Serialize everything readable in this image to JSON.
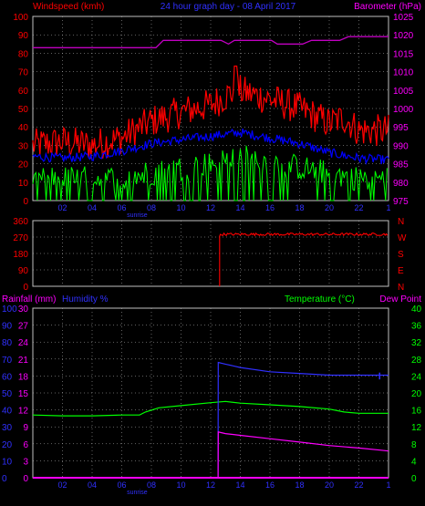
{
  "header": {
    "left_label": "Windspeed (kmh)",
    "title": "24 hour graph day - 08 April 2017",
    "right_label": "Barometer (hPa)"
  },
  "colors": {
    "background": "#000000",
    "grid": "#c0c0c0",
    "red": "#ff0000",
    "magenta": "#c000c0",
    "blue": "#0000ff",
    "green": "#00ff00",
    "pink": "#ff00ff",
    "navy": "#3030ff"
  },
  "x_axis": {
    "tick_labels": [
      "02",
      "04",
      "06",
      "08",
      "10",
      "12",
      "14",
      "16",
      "18",
      "20",
      "22",
      "1"
    ],
    "sunrise_label": "sunrise"
  },
  "chart_data": [
    {
      "type": "line",
      "name": "wind-barometer",
      "ylabel": "Windspeed (kmh)",
      "y2label": "Barometer (hPa)",
      "ylim": [
        0,
        100
      ],
      "y2lim": [
        975,
        1025
      ],
      "yticks": [
        0,
        10,
        20,
        30,
        40,
        50,
        60,
        70,
        80,
        90,
        100
      ],
      "y2ticks": [
        975,
        980,
        985,
        990,
        995,
        1000,
        1005,
        1010,
        1015,
        1020,
        1025
      ],
      "x_hours": [
        0,
        24
      ],
      "series": [
        {
          "color": "#ff0000",
          "axis": "y",
          "style": "noisy",
          "x": [
            0,
            2,
            4,
            6,
            8,
            10,
            12,
            13.7,
            16,
            18,
            20,
            21,
            22,
            24
          ],
          "values": [
            30,
            32,
            30,
            34,
            43,
            48,
            52,
            60,
            55,
            50,
            42,
            45,
            38,
            38
          ]
        },
        {
          "color": "#0000ff",
          "axis": "y",
          "style": "noisy",
          "x": [
            0,
            2,
            4,
            6,
            8,
            10,
            12,
            14,
            16,
            18,
            20,
            22,
            24
          ],
          "values": [
            24,
            23,
            24,
            27,
            31,
            33,
            35,
            37,
            34,
            31,
            26,
            23,
            22
          ]
        },
        {
          "color": "#00ff00",
          "axis": "y",
          "style": "spiky",
          "x": [
            0,
            6,
            8,
            12,
            14,
            18,
            22,
            24
          ],
          "values": [
            12,
            12,
            15,
            20,
            24,
            18,
            12,
            12
          ]
        },
        {
          "color": "#c000c0",
          "axis": "y2",
          "style": "step",
          "x": [
            0,
            8.3,
            8.8,
            12.7,
            13.2,
            13.6,
            13.8,
            16.1,
            16.5,
            18.2,
            18.8,
            20.7,
            21.3,
            24
          ],
          "values": [
            1016.5,
            1016.5,
            1018.5,
            1018.5,
            1017.5,
            1018.5,
            1018.5,
            1018.5,
            1017.5,
            1017.5,
            1018.5,
            1018.5,
            1019.5,
            1019.5
          ]
        }
      ]
    },
    {
      "type": "scatter",
      "name": "wind-direction",
      "ylim": [
        0,
        360
      ],
      "yticks": [
        0,
        90,
        180,
        270,
        360
      ],
      "dir_labels": [
        "N",
        "W",
        "S",
        "E",
        "N"
      ],
      "series": [
        {
          "color": "#ff0000",
          "style": "direction",
          "x": [
            0,
            12.6,
            12.61,
            13.0,
            14,
            16,
            18,
            20,
            22,
            24
          ],
          "values": [
            0,
            0,
            275,
            285,
            285,
            285,
            285,
            285,
            285,
            285
          ]
        }
      ]
    },
    {
      "type": "line",
      "name": "rain-humidity-temperature",
      "y_rain_label": "Rainfall (mm)",
      "y_hum_label": "Humidity %",
      "y_temp_label": "Temperature (°C)",
      "y_dew_label": "Dew Point",
      "rain_ticks": [
        0,
        3,
        6,
        9,
        12,
        15,
        18,
        21,
        24,
        27,
        30
      ],
      "hum_ticks": [
        0,
        10,
        20,
        30,
        40,
        50,
        60,
        70,
        80,
        90,
        100
      ],
      "temp_ticks": [
        0,
        4,
        8,
        12,
        16,
        20,
        24,
        28,
        32,
        36,
        40
      ],
      "ylim": [
        0,
        40
      ],
      "series": [
        {
          "color": "#00ff00",
          "axis": "temp",
          "x": [
            0,
            2,
            4,
            6,
            7.2,
            7.6,
            8.5,
            10,
            12,
            13,
            14,
            16,
            18,
            20,
            21,
            22,
            24
          ],
          "values": [
            14.8,
            14.6,
            14.6,
            14.8,
            14.8,
            15.5,
            16.5,
            17,
            17.7,
            18,
            17.6,
            17.2,
            16.8,
            16.2,
            15.5,
            15.2,
            15.2
          ]
        },
        {
          "color": "#3030ff",
          "axis": "temp",
          "x": [
            12.5,
            12.51,
            13,
            14,
            16,
            18,
            20,
            22,
            23.5,
            24
          ],
          "values": [
            0,
            27.2,
            26.8,
            26,
            25,
            24.6,
            24.2,
            24.2,
            24.2,
            24.2
          ]
        },
        {
          "color": "#ff00ff",
          "axis": "temp",
          "x": [
            12.5,
            12.51,
            13,
            14,
            16,
            18,
            20,
            22,
            23.5,
            24
          ],
          "values": [
            0,
            10.8,
            10.4,
            10,
            9.2,
            8.4,
            7.6,
            7,
            6.5,
            6.3
          ]
        },
        {
          "color": "#ff00ff",
          "axis": "temp",
          "x": [
            0,
            24
          ],
          "values": [
            0,
            0
          ]
        }
      ]
    }
  ]
}
